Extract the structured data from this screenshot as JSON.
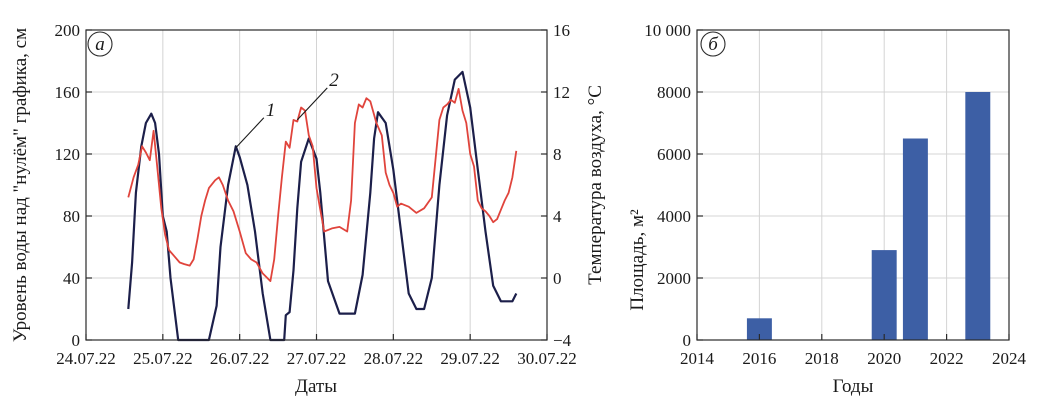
{
  "chart_data": [
    {
      "type": "line",
      "panel_label": "а",
      "xlabel": "Даты",
      "ylabel": "Уровень воды над \"нулём\" графика, см",
      "y2label": "Температура воздуха, °С",
      "x_ticks": [
        "24.07.22",
        "25.07.22",
        "26.07.22",
        "27.07.22",
        "28.07.22",
        "29.07.22",
        "30.07.22"
      ],
      "xlim": [
        0,
        6
      ],
      "ylim": [
        0,
        200
      ],
      "y_ticks": [
        0,
        40,
        80,
        120,
        160,
        200
      ],
      "y2lim": [
        -4,
        16
      ],
      "y2_ticks": [
        -4,
        0,
        4,
        8,
        12,
        16
      ],
      "grid": true,
      "series": [
        {
          "name": "1",
          "axis": "left",
          "color": "#1c1f4a",
          "x": [
            0.55,
            0.6,
            0.65,
            0.72,
            0.78,
            0.85,
            0.9,
            0.95,
            1.0,
            1.05,
            1.1,
            1.2,
            1.3,
            1.35,
            1.38,
            1.42,
            1.6,
            1.7,
            1.75,
            1.85,
            1.95,
            2.0,
            2.1,
            2.2,
            2.3,
            2.4,
            2.5,
            2.53,
            2.58,
            2.6,
            2.65,
            2.7,
            2.75,
            2.8,
            2.9,
            3.0,
            3.05,
            3.15,
            3.3,
            3.4,
            3.5,
            3.6,
            3.7,
            3.75,
            3.8,
            3.9,
            4.0,
            4.1,
            4.2,
            4.3,
            4.4,
            4.5,
            4.6,
            4.7,
            4.8,
            4.9,
            5.0,
            5.1,
            5.2,
            5.3,
            5.4,
            5.5,
            5.55,
            5.6
          ],
          "y": [
            20,
            50,
            95,
            125,
            140,
            146,
            140,
            120,
            80,
            70,
            40,
            0,
            0,
            0,
            0,
            0,
            0,
            22,
            60,
            100,
            125,
            118,
            100,
            70,
            30,
            0,
            0,
            0,
            0,
            16,
            18,
            45,
            85,
            115,
            130,
            117,
            95,
            38,
            17,
            17,
            17,
            42,
            95,
            130,
            147,
            140,
            110,
            70,
            30,
            20,
            20,
            40,
            100,
            145,
            168,
            173,
            150,
            110,
            70,
            35,
            25,
            25,
            25,
            30
          ]
        },
        {
          "name": "2",
          "axis": "right",
          "color": "#e0443c",
          "x": [
            0.55,
            0.62,
            0.68,
            0.73,
            0.78,
            0.83,
            0.88,
            0.93,
            0.98,
            1.03,
            1.08,
            1.15,
            1.22,
            1.28,
            1.35,
            1.4,
            1.45,
            1.5,
            1.55,
            1.6,
            1.68,
            1.73,
            1.78,
            1.85,
            1.92,
            2.0,
            2.08,
            2.15,
            2.22,
            2.3,
            2.4,
            2.45,
            2.5,
            2.55,
            2.6,
            2.65,
            2.7,
            2.75,
            2.8,
            2.85,
            2.9,
            2.95,
            3.0,
            3.05,
            3.1,
            3.2,
            3.3,
            3.4,
            3.45,
            3.5,
            3.55,
            3.6,
            3.65,
            3.7,
            3.78,
            3.85,
            3.9,
            3.95,
            4.0,
            4.05,
            4.1,
            4.15,
            4.2,
            4.3,
            4.4,
            4.5,
            4.6,
            4.65,
            4.7,
            4.75,
            4.8,
            4.85,
            4.9,
            4.95,
            5.0,
            5.05,
            5.1,
            5.15,
            5.2,
            5.25,
            5.3,
            5.35,
            5.4,
            5.45,
            5.5,
            5.55,
            5.6
          ],
          "y": [
            5.2,
            6.5,
            7.3,
            8.5,
            8.1,
            7.6,
            9.5,
            7.0,
            4.5,
            2.8,
            1.8,
            1.4,
            1.0,
            0.9,
            0.8,
            1.2,
            2.5,
            4.0,
            5.0,
            5.8,
            6.3,
            6.5,
            6.0,
            5.0,
            4.3,
            3.0,
            1.6,
            1.2,
            1.0,
            0.3,
            -0.2,
            1.2,
            4.0,
            6.5,
            8.8,
            8.4,
            10.2,
            10.1,
            11.0,
            10.8,
            9.2,
            8.5,
            5.8,
            4.4,
            3.0,
            3.2,
            3.3,
            3.0,
            5.0,
            10.0,
            11.2,
            11.0,
            11.6,
            11.4,
            10.0,
            9.2,
            6.8,
            6.0,
            5.5,
            4.6,
            4.8,
            4.7,
            4.6,
            4.2,
            4.5,
            5.2,
            10.2,
            11.0,
            11.2,
            11.5,
            11.3,
            12.2,
            10.8,
            10.0,
            8.0,
            7.2,
            5.0,
            4.5,
            4.3,
            4.0,
            3.6,
            3.8,
            4.4,
            5.0,
            5.5,
            6.5,
            8.2
          ]
        }
      ]
    },
    {
      "type": "bar",
      "panel_label": "б",
      "xlabel": "Годы",
      "ylabel": "Площадь, м²",
      "xlim": [
        2014,
        2024
      ],
      "x_ticks": [
        "2014",
        "2016",
        "2018",
        "2020",
        "2022",
        "2024"
      ],
      "ylim": [
        0,
        10000
      ],
      "y_ticks": [
        "0",
        "2000",
        "4000",
        "6000",
        "8000",
        "10 000"
      ],
      "grid": true,
      "color": "#3d5fa5",
      "categories": [
        2016,
        2020,
        2021,
        2023
      ],
      "values": [
        700,
        2900,
        6500,
        8000
      ]
    }
  ]
}
